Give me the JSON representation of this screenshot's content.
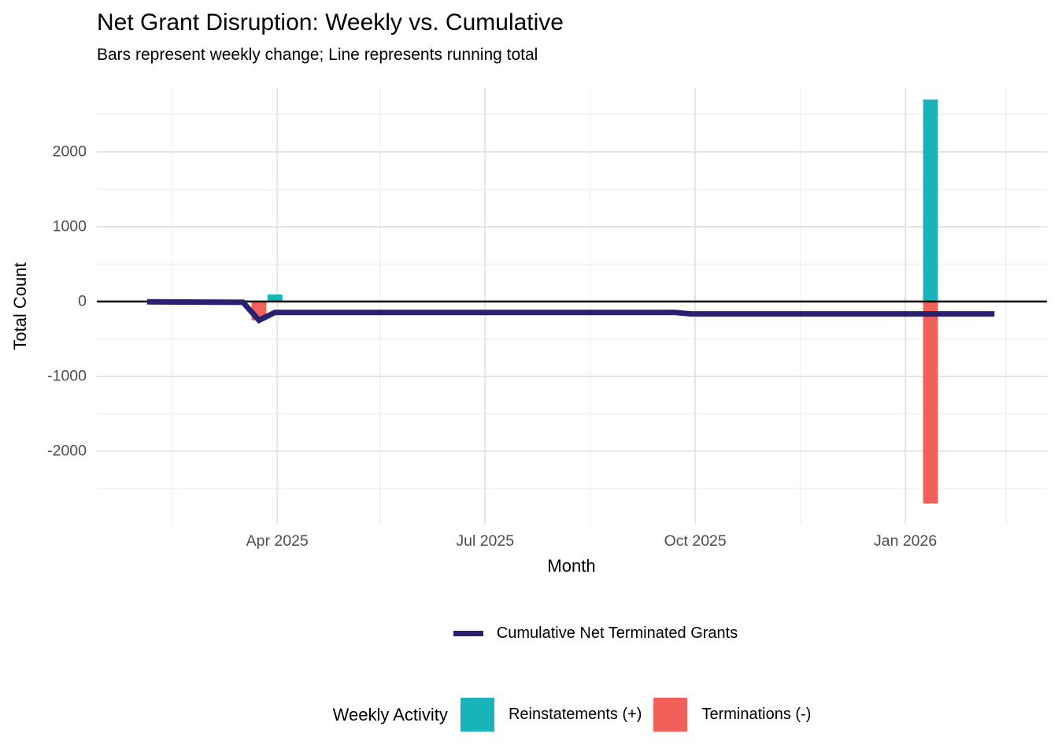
{
  "colors": {
    "reinstatement": "#19B3BA",
    "termination": "#F2605A",
    "cumulative_line": "#2A2070",
    "zero_line": "#000000",
    "grid_major": "#E3E3E3",
    "grid_minor": "#F1F1F1",
    "tick_text": "#4D4D4D"
  },
  "chart_data": {
    "type": "bar+line",
    "title": "Net Grant Disruption: Weekly vs. Cumulative",
    "subtitle": "Bars represent weekly change; Line represents running total",
    "xlabel": "Month",
    "ylabel": "Total Count",
    "x_range": [
      "2025-01-12",
      "2026-03-04"
    ],
    "ylim": [
      -2980,
      2852
    ],
    "grid": "on",
    "y_ticks": [
      {
        "label": "2000",
        "value": 2000
      },
      {
        "label": "1000",
        "value": 1000
      },
      {
        "label": "0",
        "value": 0
      },
      {
        "label": "-1000",
        "value": -1000
      },
      {
        "label": "-2000",
        "value": -2000
      }
    ],
    "y_minor": [
      2500,
      1500,
      500,
      -500,
      -1500,
      -2500
    ],
    "x_ticks": [
      {
        "label": "Apr 2025",
        "date": "2025-04-01"
      },
      {
        "label": "Jul 2025",
        "date": "2025-07-01"
      },
      {
        "label": "Oct 2025",
        "date": "2025-10-01"
      },
      {
        "label": "Jan 2026",
        "date": "2026-01-01"
      }
    ],
    "x_minor": [
      "2025-02-14",
      "2025-05-16",
      "2025-08-16",
      "2025-11-16",
      "2026-02-14"
    ],
    "bar_width_days": 6.5,
    "bar_series": [
      {
        "name": "Reinstatements (+)",
        "color_key": "reinstatement",
        "points": [
          {
            "week": "2025-03-31",
            "value": 95
          },
          {
            "week": "2026-01-12",
            "value": 2700
          }
        ]
      },
      {
        "name": "Terminations (-)",
        "color_key": "termination",
        "points": [
          {
            "week": "2025-03-24",
            "value": -250
          },
          {
            "week": "2026-01-12",
            "value": -2700
          }
        ]
      }
    ],
    "line_series": {
      "name": "Cumulative Net Terminated Grants",
      "color_key": "cumulative_line",
      "points": [
        {
          "date": "2025-02-03",
          "value": -3
        },
        {
          "date": "2025-03-17",
          "value": -10
        },
        {
          "date": "2025-03-24",
          "value": -250
        },
        {
          "date": "2025-03-31",
          "value": -145
        },
        {
          "date": "2025-09-22",
          "value": -145
        },
        {
          "date": "2025-09-29",
          "value": -165
        },
        {
          "date": "2026-02-09",
          "value": -165
        }
      ]
    },
    "legend": {
      "position": "bottom",
      "line_label": "Cumulative Net Terminated Grants",
      "weekly_title": "Weekly Activity",
      "weekly_items": [
        {
          "label": "Reinstatements (+)",
          "color_key": "reinstatement"
        },
        {
          "label": "Terminations (-)",
          "color_key": "termination"
        }
      ]
    }
  }
}
